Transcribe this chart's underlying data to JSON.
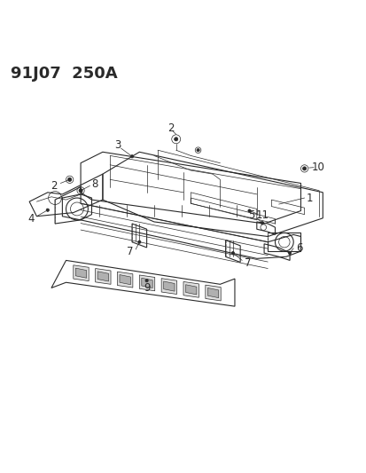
{
  "header": "91J07  250A",
  "bg_color": "#ffffff",
  "line_color": "#2a2a2a",
  "header_fontsize": 13,
  "label_fontsize": 8.5,
  "figsize": [
    4.14,
    5.33
  ],
  "dpi": 100
}
